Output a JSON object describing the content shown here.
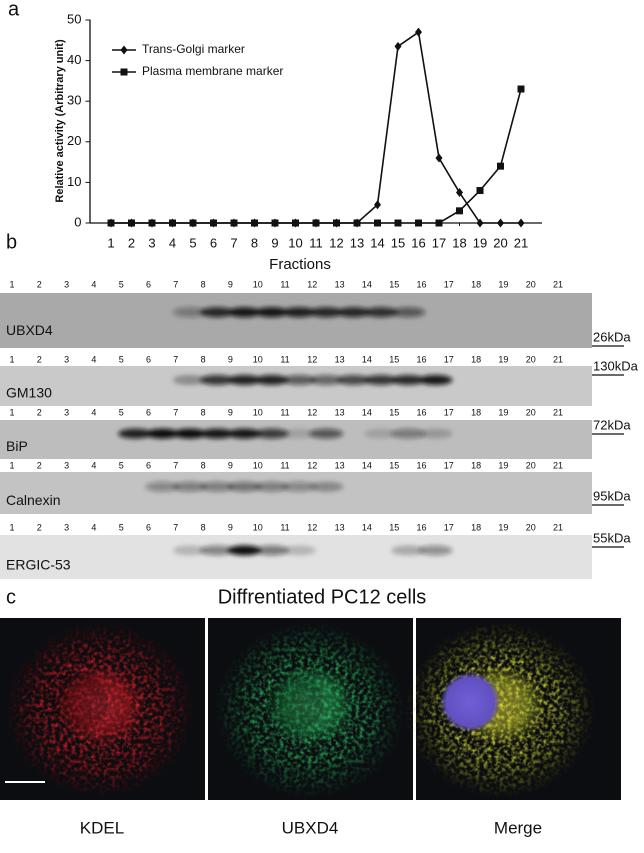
{
  "panel_labels": [
    "a",
    "b",
    "c"
  ],
  "chart_data": {
    "type": "line",
    "x_label": "Fractions",
    "y_label": "Relative activity (Arbitrary unit)",
    "x": [
      1,
      2,
      3,
      4,
      5,
      6,
      7,
      8,
      9,
      10,
      11,
      12,
      13,
      14,
      15,
      16,
      17,
      18,
      19,
      20,
      21
    ],
    "series": [
      {
        "name": "Trans-Golgi marker",
        "color": "#111111",
        "marker": "diamond",
        "values": [
          0,
          0,
          0,
          0,
          0,
          0,
          0,
          0,
          0,
          0,
          0,
          0,
          0,
          4.5,
          43.5,
          47,
          16,
          7.5,
          0,
          0,
          0
        ]
      },
      {
        "name": "Plasma membrane marker",
        "color": "#111111",
        "marker": "square",
        "values": [
          0,
          0,
          0,
          0,
          0,
          0,
          0,
          0,
          0,
          0,
          0,
          0,
          0,
          0,
          0,
          0,
          0,
          3,
          8,
          14,
          33
        ]
      }
    ],
    "xlim": [
      0,
      22
    ],
    "xticks": [
      1,
      2,
      3,
      4,
      5,
      6,
      7,
      8,
      9,
      10,
      11,
      12,
      13,
      14,
      15,
      16,
      17,
      18,
      19,
      20,
      21
    ],
    "ylim": [
      0,
      50
    ],
    "yticks": [
      0,
      10,
      20,
      30,
      40,
      50
    ],
    "grid": false,
    "legend": "upper left"
  },
  "blots": [
    {
      "name": "UBXD4",
      "size": "26kDa",
      "lanes": [
        1,
        2,
        3,
        4,
        5,
        6,
        7,
        8,
        9,
        10,
        11,
        12,
        13,
        14,
        15,
        16,
        17,
        18,
        19,
        20,
        21
      ]
    },
    {
      "name": "GM130",
      "size": "130kDa",
      "lanes": [
        1,
        2,
        3,
        4,
        5,
        6,
        7,
        8,
        9,
        10,
        11,
        12,
        13,
        14,
        15,
        16,
        17,
        18,
        19,
        20,
        21
      ]
    },
    {
      "name": "BiP",
      "size": "72kDa",
      "lanes": [
        1,
        2,
        3,
        4,
        5,
        6,
        7,
        8,
        9,
        10,
        11,
        12,
        13,
        14,
        15,
        16,
        17,
        18,
        19,
        20,
        21
      ]
    },
    {
      "name": "Calnexin",
      "size": "95kDa",
      "lanes": [
        1,
        2,
        3,
        4,
        5,
        6,
        7,
        8,
        9,
        10,
        11,
        12,
        13,
        14,
        15,
        16,
        17,
        18,
        19,
        20,
        21
      ]
    },
    {
      "name": "ERGIC-53",
      "size": "55kDa",
      "lanes": [
        1,
        2,
        3,
        4,
        5,
        6,
        7,
        8,
        9,
        10,
        11,
        12,
        13,
        14,
        15,
        16,
        17,
        18,
        19,
        20,
        21
      ]
    }
  ],
  "microscopy": {
    "title": "Diffrentiated PC12 cells",
    "images": [
      "KDEL",
      "UBXD4",
      "Merge"
    ]
  }
}
